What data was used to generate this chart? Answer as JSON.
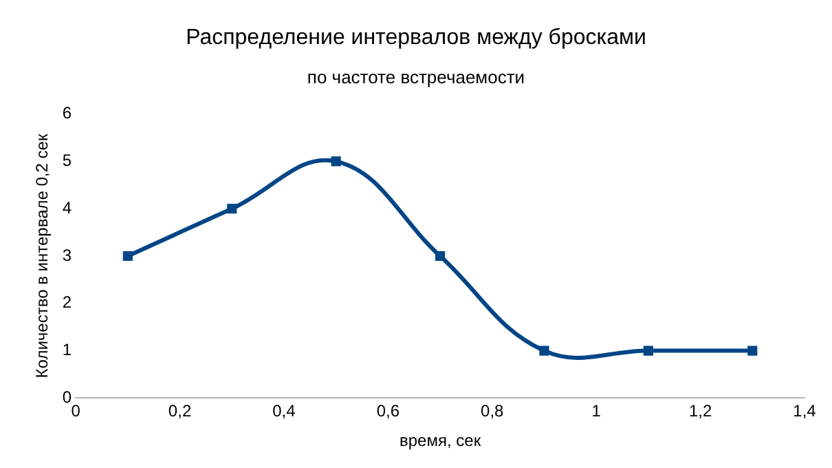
{
  "chart_data": {
    "type": "line",
    "title": "Распределение интервалов между бросками",
    "subtitle": "по частоте встречаемости",
    "xlabel": "время, сек",
    "ylabel": "Количество в интервале 0,2 сек",
    "x": [
      0.1,
      0.3,
      0.5,
      0.7,
      0.9,
      1.1,
      1.3
    ],
    "series": [
      {
        "color": "#004586",
        "values": [
          3,
          4,
          5,
          3,
          1,
          1,
          1
        ]
      }
    ],
    "xlim": [
      0,
      1.4
    ],
    "xticks": [
      0,
      {
        "value": 0.2,
        "label": "0,2"
      },
      {
        "value": 0.4,
        "label": "0,4"
      },
      {
        "value": 0.6,
        "label": "0,6"
      },
      {
        "value": 0.8,
        "label": "0,8"
      },
      1,
      {
        "value": 1.2,
        "label": "1,2"
      },
      {
        "value": 1.4,
        "label": "1,4"
      }
    ],
    "ylim": [
      0,
      6
    ],
    "yticks": [
      0,
      1,
      2,
      3,
      4,
      5,
      6
    ],
    "grid": false,
    "legend": false,
    "marker": "square",
    "line_style": "solid"
  }
}
